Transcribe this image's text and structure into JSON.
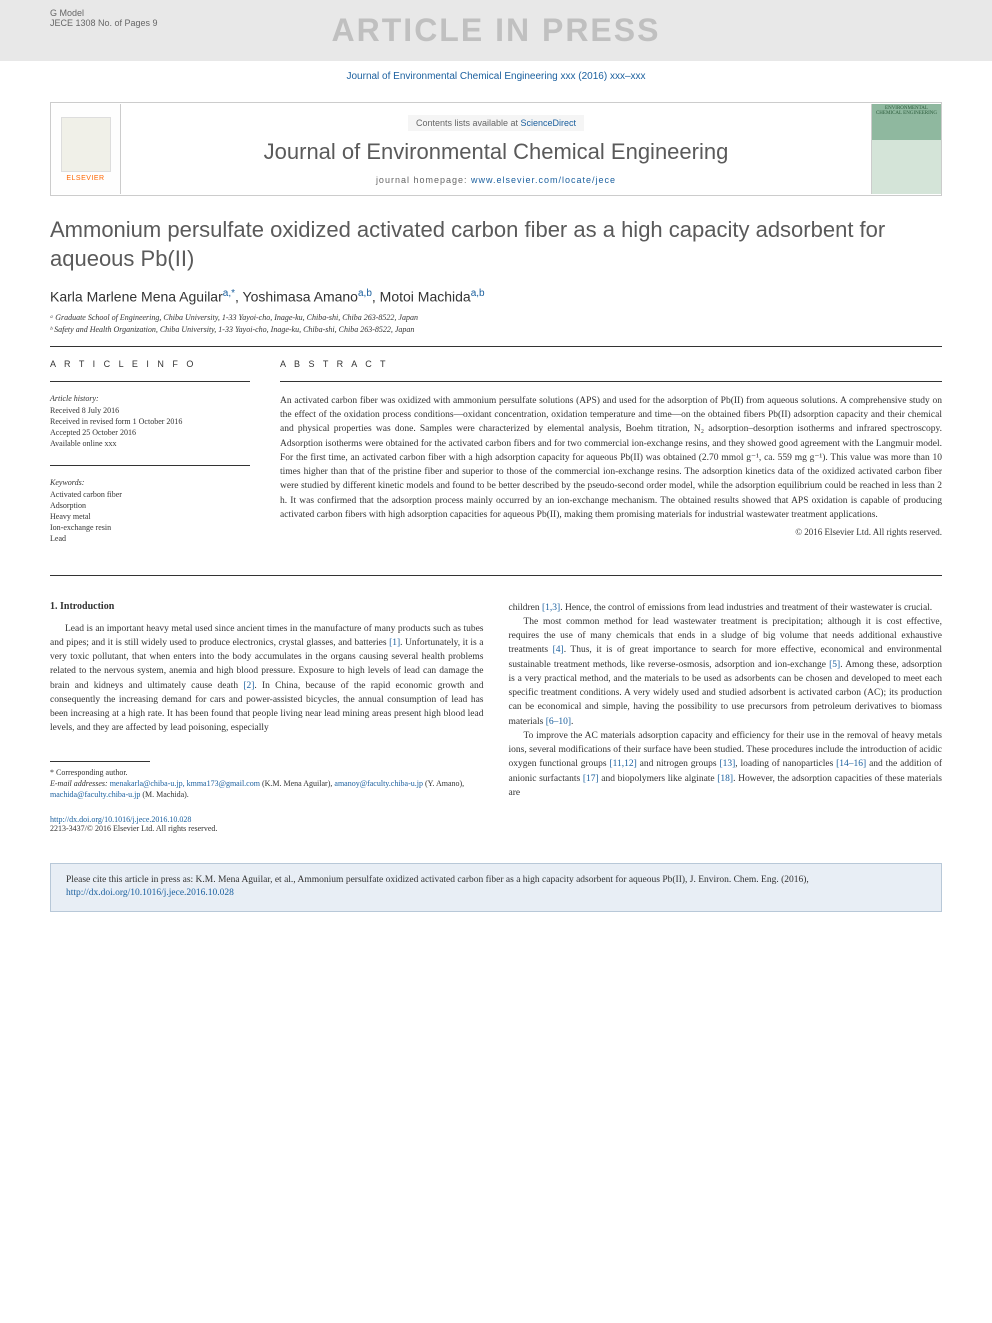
{
  "header": {
    "gmodel_line1": "G Model",
    "gmodel_line2": "JECE 1308 No. of Pages 9",
    "watermark": "ARTICLE IN PRESS",
    "citation": "Journal of Environmental Chemical Engineering xxx (2016) xxx–xxx"
  },
  "journal_box": {
    "elsevier": "ELSEVIER",
    "contents_prefix": "Contents lists available at ",
    "contents_link": "ScienceDirect",
    "journal_name": "Journal of Environmental Chemical Engineering",
    "homepage_prefix": "journal homepage: ",
    "homepage_url": "www.elsevier.com/locate/jece",
    "cover_text": "ENVIRONMENTAL CHEMICAL ENGINEERING"
  },
  "article": {
    "title": "Ammonium persulfate oxidized activated carbon fiber as a high capacity adsorbent for aqueous Pb(II)",
    "authors_html": "Karla Marlene Mena Aguilar<sup>a,*</sup>, Yoshimasa Amano<sup>a,b</sup>, Motoi Machida<sup>a,b</sup>",
    "affiliation_a": "ᵃ Graduate School of Engineering, Chiba University, 1-33 Yayoi-cho, Inage-ku, Chiba-shi, Chiba 263-8522, Japan",
    "affiliation_b": "ᵇ Safety and Health Organization, Chiba University, 1-33 Yayoi-cho, Inage-ku, Chiba-shi, Chiba 263-8522, Japan"
  },
  "info": {
    "header": "A R T I C L E  I N F O",
    "history_title": "Article history:",
    "history_items": [
      "Received 8 July 2016",
      "Received in revised form 1 October 2016",
      "Accepted 25 October 2016",
      "Available online xxx"
    ],
    "keywords_title": "Keywords:",
    "keywords": [
      "Activated carbon fiber",
      "Adsorption",
      "Heavy metal",
      "Ion-exchange resin",
      "Lead"
    ]
  },
  "abstract": {
    "header": "A B S T R A C T",
    "text": "An activated carbon fiber was oxidized with ammonium persulfate solutions (APS) and used for the adsorption of Pb(II) from aqueous solutions. A comprehensive study on the effect of the oxidation process conditions—oxidant concentration, oxidation temperature and time—on the obtained fibers Pb(II) adsorption capacity and their chemical and physical properties was done. Samples were characterized by elemental analysis, Boehm titration, N₂ adsorption–desorption isotherms and infrared spectroscopy. Adsorption isotherms were obtained for the activated carbon fibers and for two commercial ion-exchange resins, and they showed good agreement with the Langmuir model. For the first time, an activated carbon fiber with a high adsorption capacity for aqueous Pb(II) was obtained (2.70 mmol g⁻¹, ca. 559 mg g⁻¹). This value was more than 10 times higher than that of the pristine fiber and superior to those of the commercial ion-exchange resins. The adsorption kinetics data of the oxidized activated carbon fiber were studied by different kinetic models and found to be better described by the pseudo-second order model, while the adsorption equilibrium could be reached in less than 2 h. It was confirmed that the adsorption process mainly occurred by an ion-exchange mechanism. The obtained results showed that APS oxidation is capable of producing activated carbon fibers with high adsorption capacities for aqueous Pb(II), making them promising materials for industrial wastewater treatment applications.",
    "copyright": "© 2016 Elsevier Ltd. All rights reserved."
  },
  "body": {
    "section_heading": "1. Introduction",
    "col1_p1": "Lead is an important heavy metal used since ancient times in the manufacture of many products such as tubes and pipes; and it is still widely used to produce electronics, crystal glasses, and batteries [1]. Unfortunately, it is a very toxic pollutant, that when enters into the body accumulates in the organs causing several health problems related to the nervous system, anemia and high blood pressure. Exposure to high levels of lead can damage the brain and kidneys and ultimately cause death [2]. In China, because of the rapid economic growth and consequently the increasing demand for cars and power-assisted bicycles, the annual consumption of lead has been increasing at a high rate. It has been found that people living near lead mining areas present high blood lead levels, and they are affected by lead poisoning, especially",
    "col2_p1": "children [1,3]. Hence, the control of emissions from lead industries and treatment of their wastewater is crucial.",
    "col2_p2": "The most common method for lead wastewater treatment is precipitation; although it is cost effective, requires the use of many chemicals that ends in a sludge of big volume that needs additional exhaustive treatments [4]. Thus, it is of great importance to search for more effective, economical and environmental sustainable treatment methods, like reverse-osmosis, adsorption and ion-exchange [5]. Among these, adsorption is a very practical method, and the materials to be used as adsorbents can be chosen and developed to meet each specific treatment conditions. A very widely used and studied adsorbent is activated carbon (AC); its production can be economical and simple, having the possibility to use precursors from petroleum derivatives to biomass materials [6–10].",
    "col2_p3": "To improve the AC materials adsorption capacity and efficiency for their use in the removal of heavy metals ions, several modifications of their surface have been studied. These procedures include the introduction of acidic oxygen functional groups [11,12] and nitrogen groups [13], loading of nanoparticles [14–16] and the addition of anionic surfactants [17] and biopolymers like alginate [18]. However, the adsorption capacities of these materials are"
  },
  "footnote": {
    "corresponding": "* Corresponding author.",
    "email_label": "E-mail addresses: ",
    "emails": "menakarla@chiba-u.jp, kmma173@gmail.com",
    "email_tail": " (K.M. Mena Aguilar), amanoy@faculty.chiba-u.jp (Y. Amano), machida@faculty.chiba-u.jp (M. Machida)."
  },
  "doi": {
    "url": "http://dx.doi.org/10.1016/j.jece.2016.10.028",
    "copyright": "2213-3437/© 2016 Elsevier Ltd. All rights reserved."
  },
  "cite_box": {
    "text_prefix": "Please cite this article in press as: K.M. Mena Aguilar, et al., Ammonium persulfate oxidized activated carbon fiber as a high capacity adsorbent for aqueous Pb(II), J. Environ. Chem. Eng. (2016), ",
    "url": "http://dx.doi.org/10.1016/j.jece.2016.10.028"
  },
  "ref_links": {
    "r1": "[1]",
    "r2": "[2]",
    "r13": "[1,3]",
    "r4": "[4]",
    "r5": "[5]",
    "r610": "[6–10]",
    "r1112": "[11,12]",
    "r13b": "[13]",
    "r1416": "[14–16]",
    "r17": "[17]",
    "r18": "[18]"
  }
}
